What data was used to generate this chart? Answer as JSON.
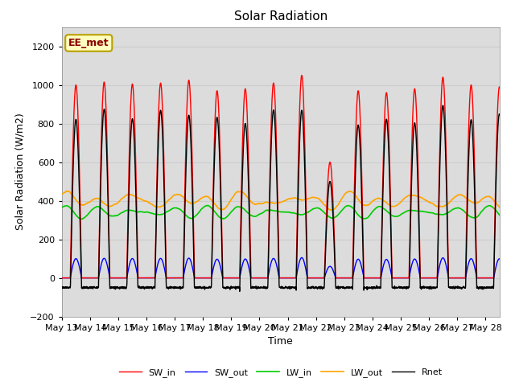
{
  "title": "Solar Radiation",
  "xlabel": "Time",
  "ylabel": "Solar Radiation (W/m2)",
  "ylim": [
    -200,
    1300
  ],
  "yticks": [
    -200,
    0,
    200,
    400,
    600,
    800,
    1000,
    1200
  ],
  "annotation_text": "EE_met",
  "annotation_color": "#8B0000",
  "annotation_bg": "#FFFFC0",
  "annotation_border": "#B8A000",
  "n_days": 16,
  "start_day": 13,
  "colors": {
    "SW_in": "#FF0000",
    "SW_out": "#0000FF",
    "LW_in": "#00CC00",
    "LW_out": "#FFA500",
    "Rnet": "#000000"
  },
  "line_widths": {
    "SW_in": 1.0,
    "SW_out": 1.0,
    "LW_in": 1.2,
    "LW_out": 1.2,
    "Rnet": 1.0
  },
  "grid_color": "#CCCCCC",
  "band_color": "#DCDCDC",
  "plot_bg": "#FFFFFF"
}
